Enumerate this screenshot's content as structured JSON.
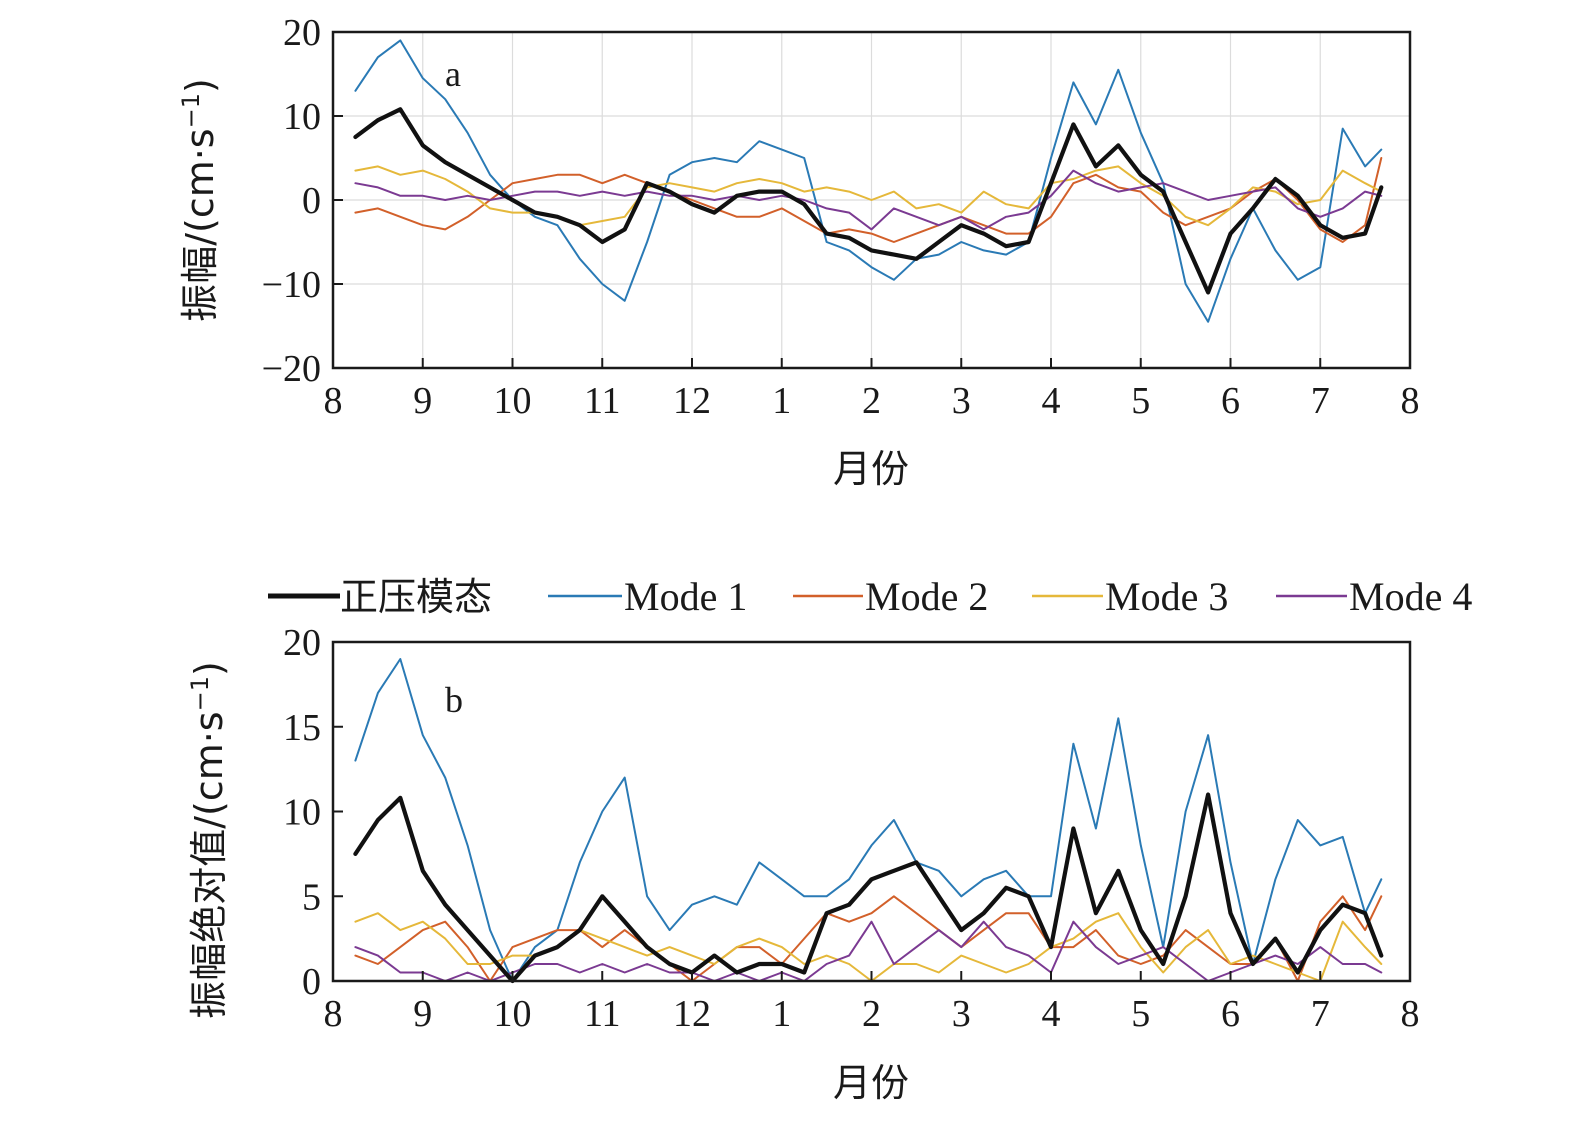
{
  "legend": {
    "items": [
      {
        "name": "正压模态",
        "color": "#111111"
      },
      {
        "name": "Mode 1",
        "color": "#2a7ab5"
      },
      {
        "name": "Mode 2",
        "color": "#d2602a"
      },
      {
        "name": "Mode 3",
        "color": "#e5b83a"
      },
      {
        "name": "Mode 4",
        "color": "#7b3a92"
      }
    ]
  },
  "chart_data": [
    {
      "type": "line",
      "panel_label": "a",
      "xlabel": "月份",
      "ylabel": "振幅/(cm·s",
      "ylabel_unit_exponent": "−1",
      "ylabel_close": ")",
      "ylim": [
        -20,
        20
      ],
      "yticks": [
        -20,
        -10,
        0,
        10,
        20
      ],
      "ytick_labels": [
        "−20",
        "−10",
        "0",
        "10",
        "20"
      ],
      "xlim": [
        0,
        12
      ],
      "xticks": [
        0,
        1,
        2,
        3,
        4,
        5,
        6,
        7,
        8,
        9,
        10,
        11,
        12
      ],
      "xtick_labels": [
        "8",
        "9",
        "10",
        "11",
        "12",
        "1",
        "2",
        "3",
        "4",
        "5",
        "6",
        "7",
        "8"
      ],
      "grid": true,
      "x": [
        0.25,
        0.5,
        0.75,
        1.0,
        1.25,
        1.5,
        1.75,
        2.0,
        2.25,
        2.5,
        2.75,
        3.0,
        3.25,
        3.5,
        3.75,
        4.0,
        4.25,
        4.5,
        4.75,
        5.0,
        5.25,
        5.5,
        5.75,
        6.0,
        6.25,
        6.5,
        6.75,
        7.0,
        7.25,
        7.5,
        7.75,
        8.0,
        8.25,
        8.5,
        8.75,
        9.0,
        9.25,
        9.5,
        9.75,
        10.0,
        10.25,
        10.5,
        10.75,
        11.0,
        11.25,
        11.5,
        11.68
      ],
      "series": [
        {
          "name": "正压模态",
          "values": [
            7.5,
            9.5,
            10.8,
            6.5,
            4.5,
            3.0,
            1.5,
            0.0,
            -1.5,
            -2.0,
            -3.0,
            -5.0,
            -3.5,
            2.0,
            1.0,
            -0.5,
            -1.5,
            0.5,
            1.0,
            1.0,
            -0.5,
            -4.0,
            -4.5,
            -6.0,
            -6.5,
            -7.0,
            -5.0,
            -3.0,
            -4.0,
            -5.5,
            -5.0,
            2.0,
            9.0,
            4.0,
            6.5,
            3.0,
            1.0,
            -5.0,
            -11.0,
            -4.0,
            -1.0,
            2.5,
            0.5,
            -3.0,
            -4.5,
            -4.0,
            1.5
          ]
        },
        {
          "name": "Mode 1",
          "values": [
            13.0,
            17.0,
            19.0,
            14.5,
            12.0,
            8.0,
            3.0,
            0.0,
            -2.0,
            -3.0,
            -7.0,
            -10.0,
            -12.0,
            -5.0,
            3.0,
            4.5,
            5.0,
            4.5,
            7.0,
            6.0,
            5.0,
            -5.0,
            -6.0,
            -8.0,
            -9.5,
            -7.0,
            -6.5,
            -5.0,
            -6.0,
            -6.5,
            -5.0,
            5.0,
            14.0,
            9.0,
            15.5,
            8.0,
            2.0,
            -10.0,
            -14.5,
            -7.0,
            -1.0,
            -6.0,
            -9.5,
            -8.0,
            8.5,
            4.0,
            6.0
          ]
        },
        {
          "name": "Mode 2",
          "values": [
            -1.5,
            -1.0,
            -2.0,
            -3.0,
            -3.5,
            -2.0,
            0.0,
            2.0,
            2.5,
            3.0,
            3.0,
            2.0,
            3.0,
            2.0,
            1.0,
            0.0,
            -1.0,
            -2.0,
            -2.0,
            -1.0,
            -2.5,
            -4.0,
            -3.5,
            -4.0,
            -5.0,
            -4.0,
            -3.0,
            -2.0,
            -3.0,
            -4.0,
            -4.0,
            -2.0,
            2.0,
            3.0,
            1.5,
            1.0,
            -1.5,
            -3.0,
            -2.0,
            -1.0,
            1.0,
            2.5,
            0.0,
            -3.5,
            -5.0,
            -3.0,
            5.0
          ]
        },
        {
          "name": "Mode 3",
          "values": [
            3.5,
            4.0,
            3.0,
            3.5,
            2.5,
            1.0,
            -1.0,
            -1.5,
            -1.5,
            -2.0,
            -3.0,
            -2.5,
            -2.0,
            1.5,
            2.0,
            1.5,
            1.0,
            2.0,
            2.5,
            2.0,
            1.0,
            1.5,
            1.0,
            0.0,
            1.0,
            -1.0,
            -0.5,
            -1.5,
            1.0,
            -0.5,
            -1.0,
            2.0,
            2.5,
            3.5,
            4.0,
            2.0,
            0.5,
            -2.0,
            -3.0,
            -1.0,
            1.5,
            1.0,
            -0.5,
            0.0,
            3.5,
            2.0,
            1.0
          ]
        },
        {
          "name": "Mode 4",
          "values": [
            2.0,
            1.5,
            0.5,
            0.5,
            0.0,
            0.5,
            0.0,
            0.5,
            1.0,
            1.0,
            0.5,
            1.0,
            0.5,
            1.0,
            0.5,
            0.5,
            0.0,
            0.5,
            0.0,
            0.5,
            0.0,
            -1.0,
            -1.5,
            -3.5,
            -1.0,
            -2.0,
            -3.0,
            -2.0,
            -3.5,
            -2.0,
            -1.5,
            0.5,
            3.5,
            2.0,
            1.0,
            1.5,
            2.0,
            1.0,
            0.0,
            0.5,
            1.0,
            1.5,
            -1.0,
            -2.0,
            -1.0,
            1.0,
            0.5
          ]
        }
      ]
    },
    {
      "type": "line",
      "panel_label": "b",
      "xlabel": "月份",
      "ylabel": "振幅绝对值/(cm·s",
      "ylabel_unit_exponent": "−1",
      "ylabel_close": ")",
      "ylim": [
        0,
        20
      ],
      "yticks": [
        0,
        5,
        10,
        15,
        20
      ],
      "ytick_labels": [
        "0",
        "5",
        "10",
        "15",
        "20"
      ],
      "xlim": [
        0,
        12
      ],
      "xticks": [
        0,
        1,
        2,
        3,
        4,
        5,
        6,
        7,
        8,
        9,
        10,
        11,
        12
      ],
      "xtick_labels": [
        "8",
        "9",
        "10",
        "11",
        "12",
        "1",
        "2",
        "3",
        "4",
        "5",
        "6",
        "7",
        "8"
      ],
      "grid": false,
      "x": [
        0.25,
        0.5,
        0.75,
        1.0,
        1.25,
        1.5,
        1.75,
        2.0,
        2.25,
        2.5,
        2.75,
        3.0,
        3.25,
        3.5,
        3.75,
        4.0,
        4.25,
        4.5,
        4.75,
        5.0,
        5.25,
        5.5,
        5.75,
        6.0,
        6.25,
        6.5,
        6.75,
        7.0,
        7.25,
        7.5,
        7.75,
        8.0,
        8.25,
        8.5,
        8.75,
        9.0,
        9.25,
        9.5,
        9.75,
        10.0,
        10.25,
        10.5,
        10.75,
        11.0,
        11.25,
        11.5,
        11.68
      ],
      "series": [
        {
          "name": "正压模态",
          "values": [
            7.5,
            9.5,
            10.8,
            6.5,
            4.5,
            3.0,
            1.5,
            0.0,
            1.5,
            2.0,
            3.0,
            5.0,
            3.5,
            2.0,
            1.0,
            0.5,
            1.5,
            0.5,
            1.0,
            1.0,
            0.5,
            4.0,
            4.5,
            6.0,
            6.5,
            7.0,
            5.0,
            3.0,
            4.0,
            5.5,
            5.0,
            2.0,
            9.0,
            4.0,
            6.5,
            3.0,
            1.0,
            5.0,
            11.0,
            4.0,
            1.0,
            2.5,
            0.5,
            3.0,
            4.5,
            4.0,
            1.5
          ]
        },
        {
          "name": "Mode 1",
          "values": [
            13.0,
            17.0,
            19.0,
            14.5,
            12.0,
            8.0,
            3.0,
            0.0,
            2.0,
            3.0,
            7.0,
            10.0,
            12.0,
            5.0,
            3.0,
            4.5,
            5.0,
            4.5,
            7.0,
            6.0,
            5.0,
            5.0,
            6.0,
            8.0,
            9.5,
            7.0,
            6.5,
            5.0,
            6.0,
            6.5,
            5.0,
            5.0,
            14.0,
            9.0,
            15.5,
            8.0,
            2.0,
            10.0,
            14.5,
            7.0,
            1.0,
            6.0,
            9.5,
            8.0,
            8.5,
            4.0,
            6.0
          ]
        },
        {
          "name": "Mode 2",
          "values": [
            1.5,
            1.0,
            2.0,
            3.0,
            3.5,
            2.0,
            0.0,
            2.0,
            2.5,
            3.0,
            3.0,
            2.0,
            3.0,
            2.0,
            1.0,
            0.0,
            1.0,
            2.0,
            2.0,
            1.0,
            2.5,
            4.0,
            3.5,
            4.0,
            5.0,
            4.0,
            3.0,
            2.0,
            3.0,
            4.0,
            4.0,
            2.0,
            2.0,
            3.0,
            1.5,
            1.0,
            1.5,
            3.0,
            2.0,
            1.0,
            1.0,
            2.5,
            0.0,
            3.5,
            5.0,
            3.0,
            5.0
          ]
        },
        {
          "name": "Mode 3",
          "values": [
            3.5,
            4.0,
            3.0,
            3.5,
            2.5,
            1.0,
            1.0,
            1.5,
            1.5,
            2.0,
            3.0,
            2.5,
            2.0,
            1.5,
            2.0,
            1.5,
            1.0,
            2.0,
            2.5,
            2.0,
            1.0,
            1.5,
            1.0,
            0.0,
            1.0,
            1.0,
            0.5,
            1.5,
            1.0,
            0.5,
            1.0,
            2.0,
            2.5,
            3.5,
            4.0,
            2.0,
            0.5,
            2.0,
            3.0,
            1.0,
            1.5,
            1.0,
            0.5,
            0.0,
            3.5,
            2.0,
            1.0
          ]
        },
        {
          "name": "Mode 4",
          "values": [
            2.0,
            1.5,
            0.5,
            0.5,
            0.0,
            0.5,
            0.0,
            0.5,
            1.0,
            1.0,
            0.5,
            1.0,
            0.5,
            1.0,
            0.5,
            0.5,
            0.0,
            0.5,
            0.0,
            0.5,
            0.0,
            1.0,
            1.5,
            3.5,
            1.0,
            2.0,
            3.0,
            2.0,
            3.5,
            2.0,
            1.5,
            0.5,
            3.5,
            2.0,
            1.0,
            1.5,
            2.0,
            1.0,
            0.0,
            0.5,
            1.0,
            1.5,
            1.0,
            2.0,
            1.0,
            1.0,
            0.5
          ]
        }
      ]
    }
  ]
}
